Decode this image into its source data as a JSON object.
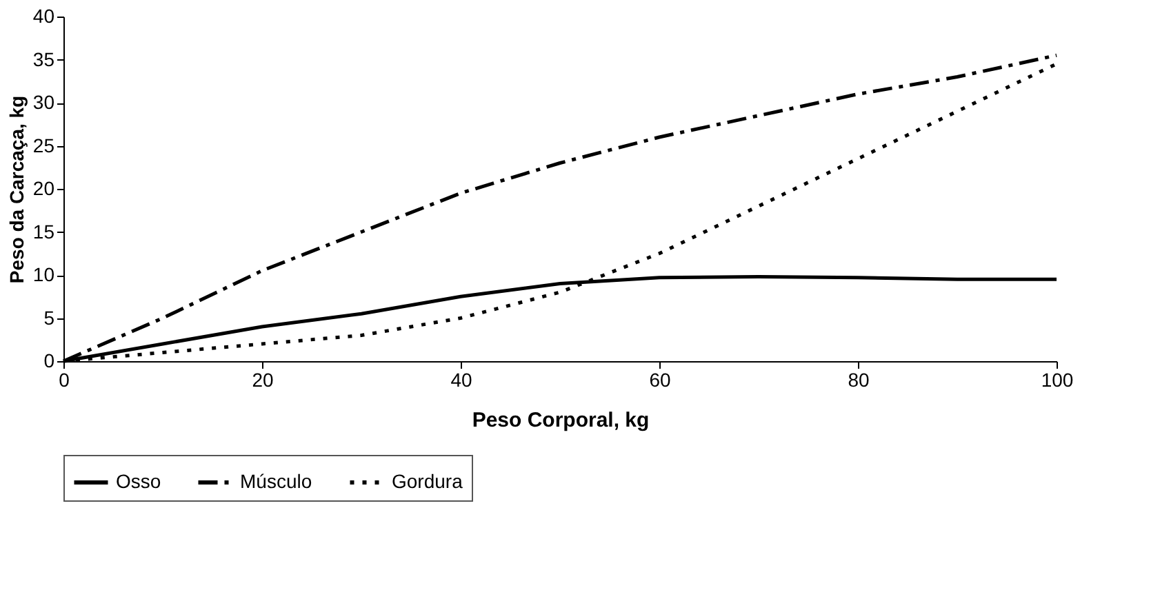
{
  "chart_data": {
    "type": "line",
    "xlabel": "Peso Corporal, kg",
    "ylabel": "Peso da Carcaça, kg",
    "x": [
      0,
      10,
      20,
      30,
      40,
      50,
      60,
      70,
      80,
      90,
      100
    ],
    "series": [
      {
        "name": "Osso",
        "color": "#000000",
        "line_style": "solid",
        "values": [
          0,
          2,
          4,
          5.5,
          7.5,
          9,
          9.7,
          9.8,
          9.7,
          9.5,
          9.5
        ]
      },
      {
        "name": "Músculo",
        "color": "#000000",
        "line_style": "dashed",
        "values": [
          0,
          5,
          10.5,
          15,
          19.5,
          23,
          26,
          28.5,
          31,
          33,
          35.5
        ]
      },
      {
        "name": "Gordura",
        "color": "#000000",
        "line_style": "dotted",
        "values": [
          0,
          1,
          2,
          3,
          5,
          8,
          12.5,
          18,
          23.5,
          29,
          34.5
        ]
      }
    ],
    "xlim": [
      0,
      100
    ],
    "xticks": [
      0,
      20,
      40,
      60,
      80,
      100
    ],
    "ylim": [
      0,
      40
    ],
    "yticks": [
      0,
      5,
      10,
      15,
      20,
      25,
      30,
      35,
      40
    ],
    "grid": false,
    "legend": "bottom",
    "marker": "none"
  }
}
